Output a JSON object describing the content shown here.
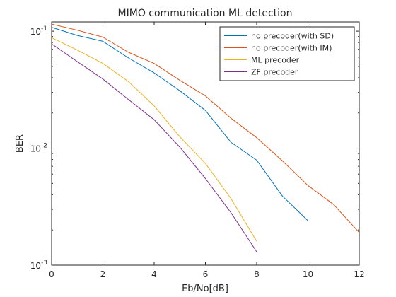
{
  "chart_data": {
    "type": "line",
    "title": "MIMO communication ML detection",
    "xlabel": "Eb/No[dB]",
    "ylabel": "BER",
    "xlim": [
      0,
      12
    ],
    "ylim": [
      0.001,
      0.12
    ],
    "yscale": "log",
    "grid": false,
    "legend_position": "top-right",
    "x_ticks": [
      0,
      2,
      4,
      6,
      8,
      10,
      12
    ],
    "y_ticks": [
      0.001,
      0.01,
      0.1
    ],
    "y_tick_labels": [
      {
        "base": "10",
        "exp": "-3"
      },
      {
        "base": "10",
        "exp": "-2"
      },
      {
        "base": "10",
        "exp": "-1"
      }
    ],
    "series": [
      {
        "name": "no precoder(with SD)",
        "color": "#0072bd",
        "x": [
          0,
          1,
          2,
          3,
          4,
          5,
          6,
          7,
          8,
          9,
          10
        ],
        "y": [
          0.108,
          0.092,
          0.082,
          0.059,
          0.044,
          0.031,
          0.021,
          0.0112,
          0.0079,
          0.0039,
          0.0024
        ]
      },
      {
        "name": "no precoder(with IM)",
        "color": "#d95319",
        "x": [
          0,
          1,
          2,
          3,
          4,
          5,
          6,
          7,
          8,
          9,
          10,
          11,
          12
        ],
        "y": [
          0.115,
          0.102,
          0.089,
          0.066,
          0.053,
          0.038,
          0.028,
          0.018,
          0.0123,
          0.0078,
          0.0048,
          0.0033,
          0.0019
        ]
      },
      {
        "name": "ML precoder",
        "color": "#edb120",
        "x": [
          0,
          1,
          2,
          3,
          4,
          5,
          6,
          7,
          8
        ],
        "y": [
          0.088,
          0.069,
          0.053,
          0.037,
          0.023,
          0.0125,
          0.0074,
          0.0037,
          0.0016
        ]
      },
      {
        "name": "ZF precoder",
        "color": "#7e2f8e",
        "x": [
          0,
          1,
          2,
          3,
          4,
          5,
          6,
          7,
          8
        ],
        "y": [
          0.078,
          0.055,
          0.039,
          0.026,
          0.0175,
          0.0102,
          0.0055,
          0.0028,
          0.0013
        ]
      }
    ]
  }
}
